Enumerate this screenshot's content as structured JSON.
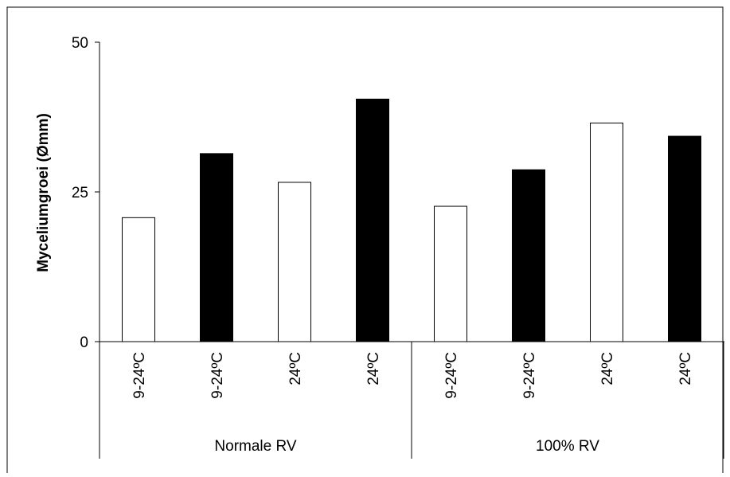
{
  "chart_data": {
    "type": "bar",
    "ylabel": "Myceliumgroei (Ømm)",
    "xlabel": "",
    "ylim": [
      0,
      50
    ],
    "yticks": [
      "0",
      "25",
      "50"
    ],
    "groups": [
      {
        "label": "Normale RV",
        "categories": [
          "9-24ºC",
          "9-24ºC",
          "24ºC",
          "24ºC"
        ]
      },
      {
        "label": "100% RV",
        "categories": [
          "9-24ºC",
          "9-24ºC",
          "24ºC",
          "24ºC"
        ]
      }
    ],
    "values": [
      20.7,
      31.4,
      26.6,
      40.5,
      22.6,
      28.7,
      36.5,
      34.3
    ],
    "bar_fills": [
      "white",
      "black",
      "white",
      "black",
      "white",
      "black",
      "white",
      "black"
    ],
    "grid": false,
    "legend": "none"
  },
  "colors": {
    "white_bar": "#ffffff",
    "black_bar": "#000000",
    "axis": "#000000"
  }
}
